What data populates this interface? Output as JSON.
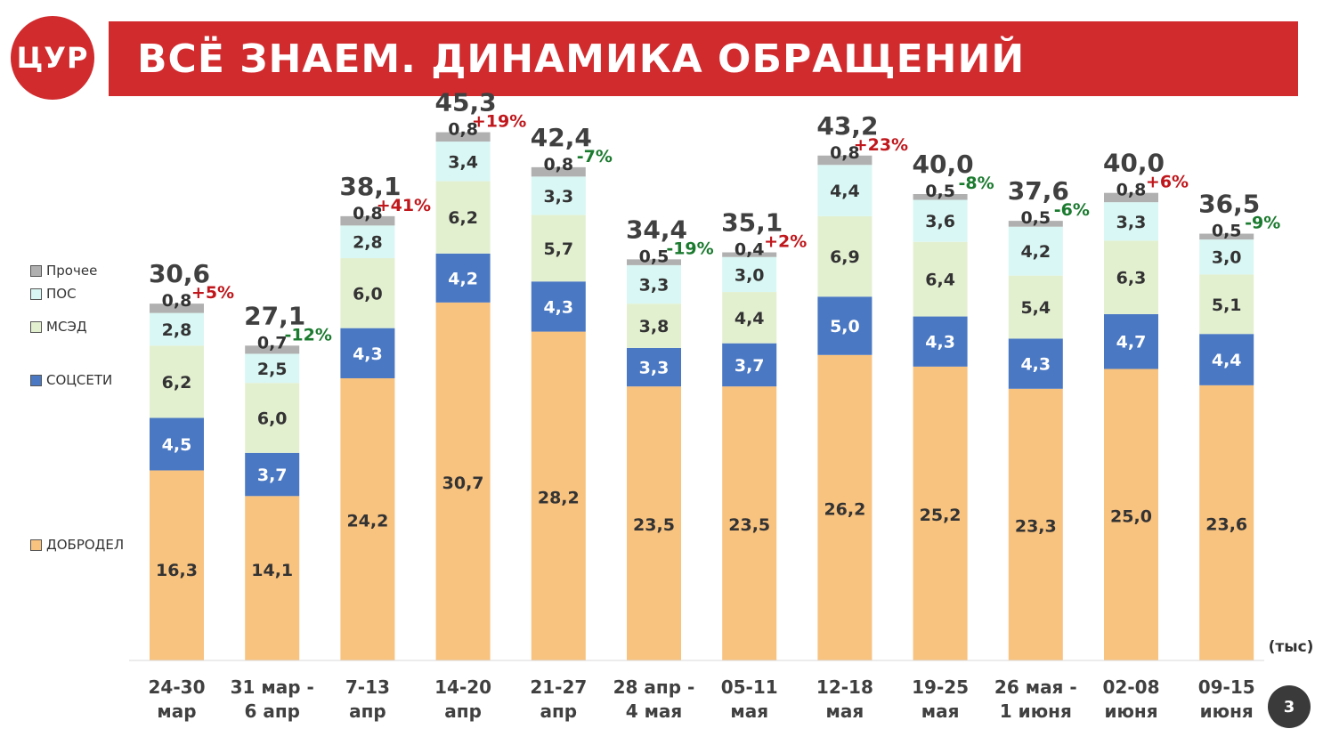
{
  "logo": {
    "text": "ЦУР"
  },
  "header": {
    "title": "ВСЁ ЗНАЕМ. ДИНАМИКА ОБРАЩЕНИЙ"
  },
  "page_number": "3",
  "legend": [
    {
      "label": "Прочее",
      "color": "#b0b0b0"
    },
    {
      "label": "ПОС",
      "color": "#d9f7f4"
    },
    {
      "label": "МСЭД",
      "color": "#e3f0d0"
    },
    {
      "label": "СОЦСЕТИ",
      "color": "#4a78c3"
    },
    {
      "label": "ДОБРОДЕЛ",
      "color": "#f8c27f"
    }
  ],
  "chart_data": {
    "type": "bar",
    "stacked": true,
    "unit_label": "(тыс)",
    "categories": [
      [
        "24-30",
        "мар"
      ],
      [
        "31 мар -",
        "6 апр"
      ],
      [
        "7-13",
        "апр"
      ],
      [
        "14-20",
        "апр"
      ],
      [
        "21-27",
        "апр"
      ],
      [
        "28 апр -",
        "4 мая"
      ],
      [
        "05-11",
        "мая"
      ],
      [
        "12-18",
        "мая"
      ],
      [
        "19-25",
        "мая"
      ],
      [
        "26 мая -",
        "1 июня"
      ],
      [
        "02-08",
        "июня"
      ],
      [
        "09-15",
        "июня"
      ]
    ],
    "series": [
      {
        "name": "ДОБРОДЕЛ",
        "color": "#f8c27f",
        "text_color": "#333333",
        "values": [
          16.3,
          14.1,
          24.2,
          30.7,
          28.2,
          23.5,
          23.5,
          26.2,
          25.2,
          23.3,
          25.0,
          23.6
        ],
        "labels": [
          "16,3",
          "14,1",
          "24,2",
          "30,7",
          "28,2",
          "23,5",
          "23,5",
          "26,2",
          "25,2",
          "23,3",
          "25,0",
          "23,6"
        ]
      },
      {
        "name": "СОЦСЕТИ",
        "color": "#4a78c3",
        "text_color": "#ffffff",
        "values": [
          4.5,
          3.7,
          4.3,
          4.2,
          4.3,
          3.3,
          3.7,
          5.0,
          4.3,
          4.3,
          4.7,
          4.4
        ],
        "labels": [
          "4,5",
          "3,7",
          "4,3",
          "4,2",
          "4,3",
          "3,3",
          "3,7",
          "5,0",
          "4,3",
          "4,3",
          "4,7",
          "4,4"
        ]
      },
      {
        "name": "МСЭД",
        "color": "#e3f0d0",
        "text_color": "#333333",
        "values": [
          6.2,
          6.0,
          6.0,
          6.2,
          5.7,
          3.8,
          4.4,
          6.9,
          6.4,
          5.4,
          6.3,
          5.1
        ],
        "labels": [
          "6,2",
          "6,0",
          "6,0",
          "6,2",
          "5,7",
          "3,8",
          "4,4",
          "6,9",
          "6,4",
          "5,4",
          "6,3",
          "5,1"
        ]
      },
      {
        "name": "ПОС",
        "color": "#d9f7f4",
        "text_color": "#333333",
        "values": [
          2.8,
          2.5,
          2.8,
          3.4,
          3.3,
          3.3,
          3.0,
          4.4,
          3.6,
          4.2,
          3.3,
          3.0
        ],
        "labels": [
          "2,8",
          "2,5",
          "2,8",
          "3,4",
          "3,3",
          "3,3",
          "3,0",
          "4,4",
          "3,6",
          "4,2",
          "3,3",
          "3,0"
        ]
      },
      {
        "name": "Прочее",
        "color": "#b0b0b0",
        "text_color": "#333333",
        "values": [
          0.8,
          0.7,
          0.8,
          0.8,
          0.8,
          0.5,
          0.4,
          0.8,
          0.5,
          0.5,
          0.8,
          0.5
        ],
        "labels": [
          "0,8",
          "0,7",
          "0,8",
          "0,8",
          "0,8",
          "0,5",
          "0,4",
          "0,8",
          "0,5",
          "0,5",
          "0,8",
          "0,5"
        ]
      }
    ],
    "totals": [
      "30,6",
      "27,1",
      "38,1",
      "45,3",
      "42,4",
      "34,4",
      "35,1",
      "43,2",
      "40,0",
      "37,6",
      "40,0",
      "36,5"
    ],
    "changes": [
      "+5%",
      "-12%",
      "+41%",
      "+19%",
      "-7%",
      "-19%",
      "+2%",
      "+23%",
      "-8%",
      "-6%",
      "+6%",
      "-9%"
    ],
    "change_colors": {
      "up": "#c0171c",
      "down": "#1a7a2e"
    },
    "ylim": [
      0,
      46
    ]
  }
}
